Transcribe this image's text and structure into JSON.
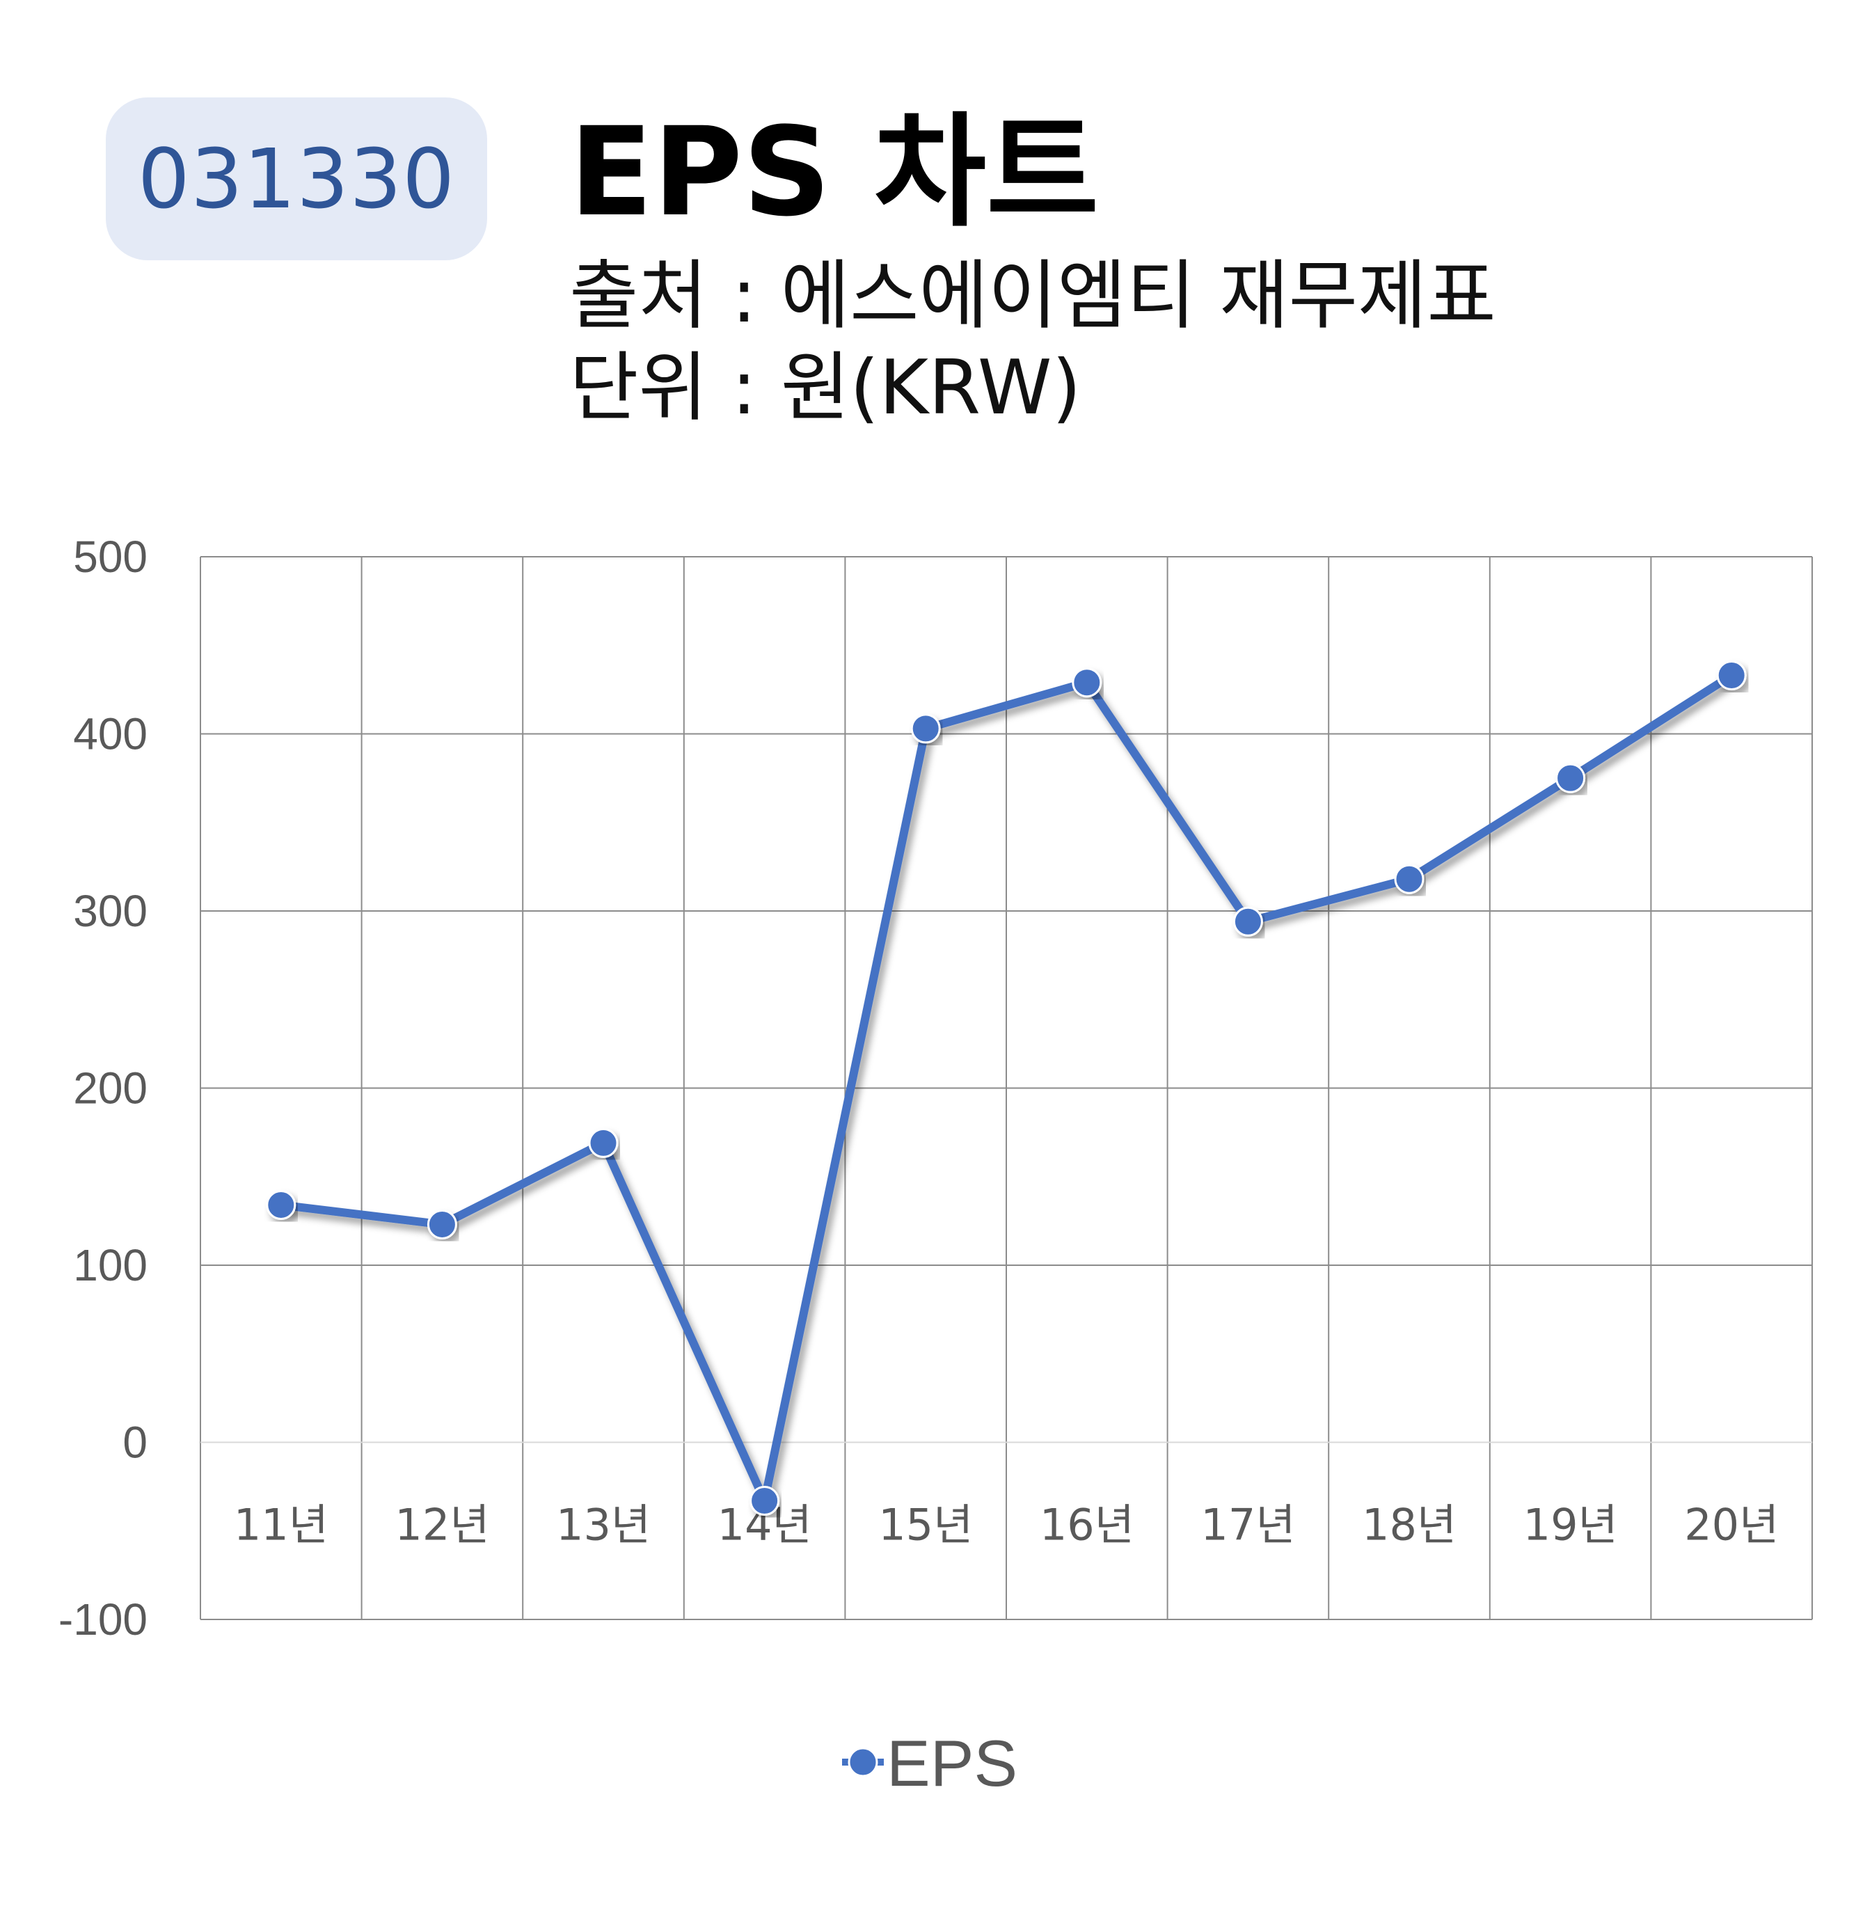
{
  "header": {
    "ticker": "031330",
    "title": "EPS 차트",
    "source_line": "출처 : 에스에이엠티 재무제표",
    "unit_line": "단위 : 원(KRW)"
  },
  "chart_data": {
    "type": "line",
    "categories": [
      "11년",
      "12년",
      "13년",
      "14년",
      "15년",
      "16년",
      "17년",
      "18년",
      "19년",
      "20년"
    ],
    "series": [
      {
        "name": "EPS",
        "values": [
          134,
          123,
          169,
          -33,
          403,
          429,
          294,
          318,
          375,
          433
        ],
        "color": "#4472c4"
      }
    ],
    "ylim": [
      -100,
      500
    ],
    "yticks": [
      500,
      400,
      300,
      200,
      100,
      0,
      -100
    ],
    "grid": true,
    "legend": "bottom",
    "title": "",
    "xlabel": "",
    "ylabel": ""
  }
}
